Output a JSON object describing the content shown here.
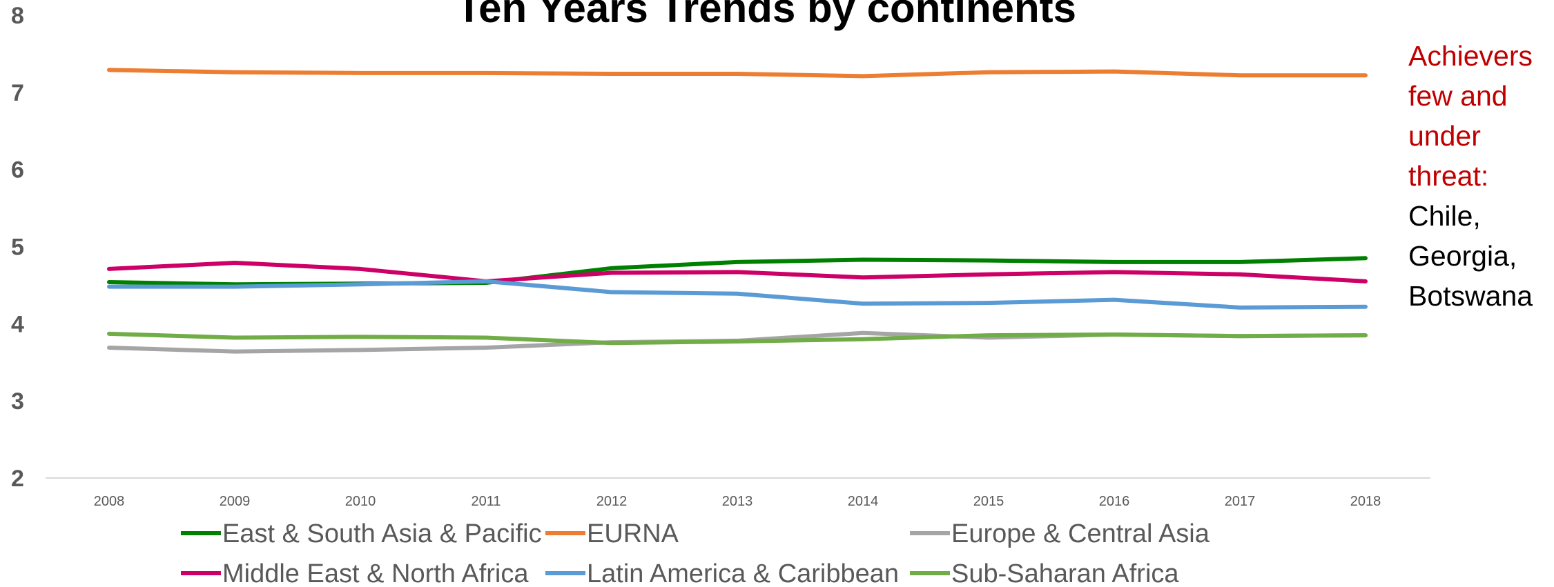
{
  "chart_data": {
    "type": "line",
    "title": "Ten Years Trends by continents",
    "x": [
      "2008",
      "2009",
      "2010",
      "2011",
      "2012",
      "2013",
      "2014",
      "2015",
      "2016",
      "2017",
      "2018"
    ],
    "ylim": [
      2,
      8
    ],
    "yticks": [
      "2",
      "3",
      "4",
      "5",
      "6",
      "7",
      "8"
    ],
    "grid": false,
    "legend_position": "bottom",
    "series": [
      {
        "name": "East & South Asia & Pacific",
        "color": "#008000",
        "values": [
          4.54,
          4.51,
          4.52,
          4.53,
          4.72,
          4.8,
          4.83,
          4.82,
          4.8,
          4.8,
          4.85
        ]
      },
      {
        "name": "EURNA",
        "color": "#ed7d31",
        "values": [
          7.29,
          7.26,
          7.25,
          7.25,
          7.24,
          7.24,
          7.21,
          7.26,
          7.27,
          7.22,
          7.22
        ]
      },
      {
        "name": "Europe & Central Asia",
        "color": "#a5a5a5",
        "values": [
          3.69,
          3.64,
          3.66,
          3.69,
          3.76,
          3.78,
          3.88,
          3.82,
          3.86,
          3.84,
          3.85
        ]
      },
      {
        "name": "Middle East & North Africa",
        "color": "#cc0066",
        "values": [
          4.71,
          4.79,
          4.71,
          4.55,
          4.66,
          4.67,
          4.6,
          4.64,
          4.67,
          4.64,
          4.55
        ]
      },
      {
        "name": "Latin America & Caribbean",
        "color": "#5b9bd5",
        "values": [
          4.48,
          4.48,
          4.51,
          4.55,
          4.41,
          4.39,
          4.26,
          4.27,
          4.31,
          4.21,
          4.22
        ]
      },
      {
        "name": "Sub-Saharan Africa",
        "color": "#70ad47",
        "values": [
          3.87,
          3.82,
          3.83,
          3.82,
          3.75,
          3.77,
          3.8,
          3.85,
          3.86,
          3.84,
          3.85
        ]
      }
    ],
    "annotation": {
      "highlight_lines": [
        "Achievers",
        "few and",
        "under",
        "threat:"
      ],
      "plain_lines": [
        "Chile,",
        "Georgia,",
        "Botswana"
      ]
    }
  }
}
